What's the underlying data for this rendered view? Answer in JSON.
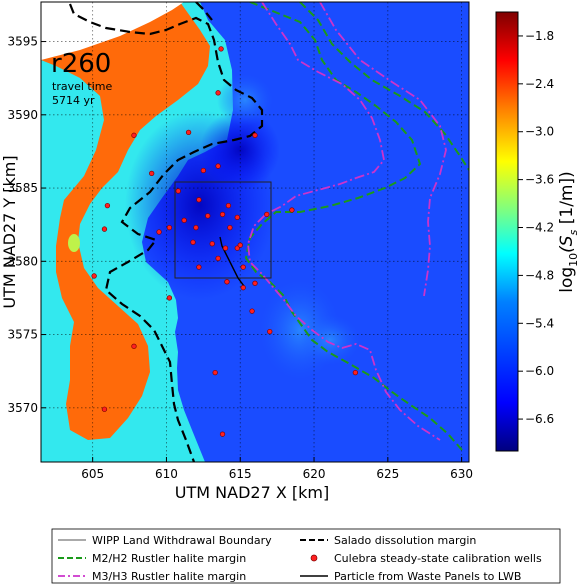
{
  "map": {
    "run_label": "r260",
    "travel_time_label": "travel time",
    "travel_time_value": "5714 yr",
    "x_axis_label": "UTM NAD27 X [km]",
    "y_axis_label": "UTM NAD27 Y [km]",
    "x_range_km": [
      601.5,
      630.5
    ],
    "y_range_km": [
      3566.3,
      3597.7
    ],
    "x_ticks": [
      "605",
      "610",
      "615",
      "620",
      "625",
      "630"
    ],
    "y_ticks": [
      "3570",
      "3575",
      "3580",
      "3585",
      "3590",
      "3595"
    ],
    "grid": true
  },
  "colorbar": {
    "label_prefix": "log",
    "label_subscript": "10",
    "label_body": "(S",
    "label_s_sub": "s",
    "label_units": " [1/m])",
    "ticks": [
      "−1.8",
      "−2.4",
      "−3.0",
      "−3.6",
      "−4.2",
      "−4.8",
      "−5.4",
      "−6.0",
      "−6.6"
    ],
    "range": [
      -7.0,
      -1.5
    ],
    "colors": [
      "#00007f",
      "#0000ff",
      "#007fff",
      "#00ffff",
      "#7fff7f",
      "#ffff00",
      "#ff7f00",
      "#ff0000",
      "#7f0000"
    ]
  },
  "legend": {
    "items": [
      {
        "label": "WIPP Land Withdrawal Boundary",
        "symbol": "thin-line",
        "color": "#555555"
      },
      {
        "label": "Salado dissolution margin",
        "symbol": "dashed-line",
        "color": "#000000"
      },
      {
        "label": "M2/H2 Rustler halite margin",
        "symbol": "dashed-line",
        "color": "#1a9a1a"
      },
      {
        "label": "Culebra steady-state calibration wells",
        "symbol": "dot",
        "color": "#ff2020"
      },
      {
        "label": "M3/H3 Rustler halite margin",
        "symbol": "dashdot-line",
        "color": "#cc33cc"
      },
      {
        "label": "Particle from Waste Panels to LWB",
        "symbol": "solid-line",
        "color": "#000000"
      }
    ]
  },
  "wells_km": [
    [
      613.7,
      3594.5
    ],
    [
      613.5,
      3591.5
    ],
    [
      607.8,
      3588.6
    ],
    [
      611.5,
      3588.8
    ],
    [
      616.0,
      3588.6
    ],
    [
      612.5,
      3586.2
    ],
    [
      613.5,
      3586.5
    ],
    [
      609.0,
      3586.0
    ],
    [
      610.8,
      3584.8
    ],
    [
      612.2,
      3584.2
    ],
    [
      606.0,
      3583.8
    ],
    [
      614.2,
      3583.8
    ],
    [
      618.5,
      3583.5
    ],
    [
      611.2,
      3582.8
    ],
    [
      612.8,
      3583.1
    ],
    [
      613.8,
      3583.2
    ],
    [
      614.8,
      3583.0
    ],
    [
      616.8,
      3583.2
    ],
    [
      609.5,
      3582.0
    ],
    [
      610.2,
      3582.3
    ],
    [
      612.0,
      3582.3
    ],
    [
      614.3,
      3582.3
    ],
    [
      605.8,
      3582.2
    ],
    [
      611.8,
      3581.3
    ],
    [
      613.1,
      3581.2
    ],
    [
      614.0,
      3580.9
    ],
    [
      614.8,
      3580.9
    ],
    [
      615.0,
      3581.1
    ],
    [
      613.5,
      3580.2
    ],
    [
      612.2,
      3579.6
    ],
    [
      615.2,
      3579.6
    ],
    [
      614.1,
      3578.6
    ],
    [
      615.2,
      3578.2
    ],
    [
      616.0,
      3578.5
    ],
    [
      605.1,
      3579.0
    ],
    [
      610.2,
      3577.5
    ],
    [
      615.8,
      3576.6
    ],
    [
      617.0,
      3575.2
    ],
    [
      607.8,
      3574.2
    ],
    [
      613.3,
      3572.4
    ],
    [
      622.8,
      3572.4
    ],
    [
      605.8,
      3569.9
    ],
    [
      613.8,
      3568.2
    ]
  ],
  "text_rendering_font": ""
}
